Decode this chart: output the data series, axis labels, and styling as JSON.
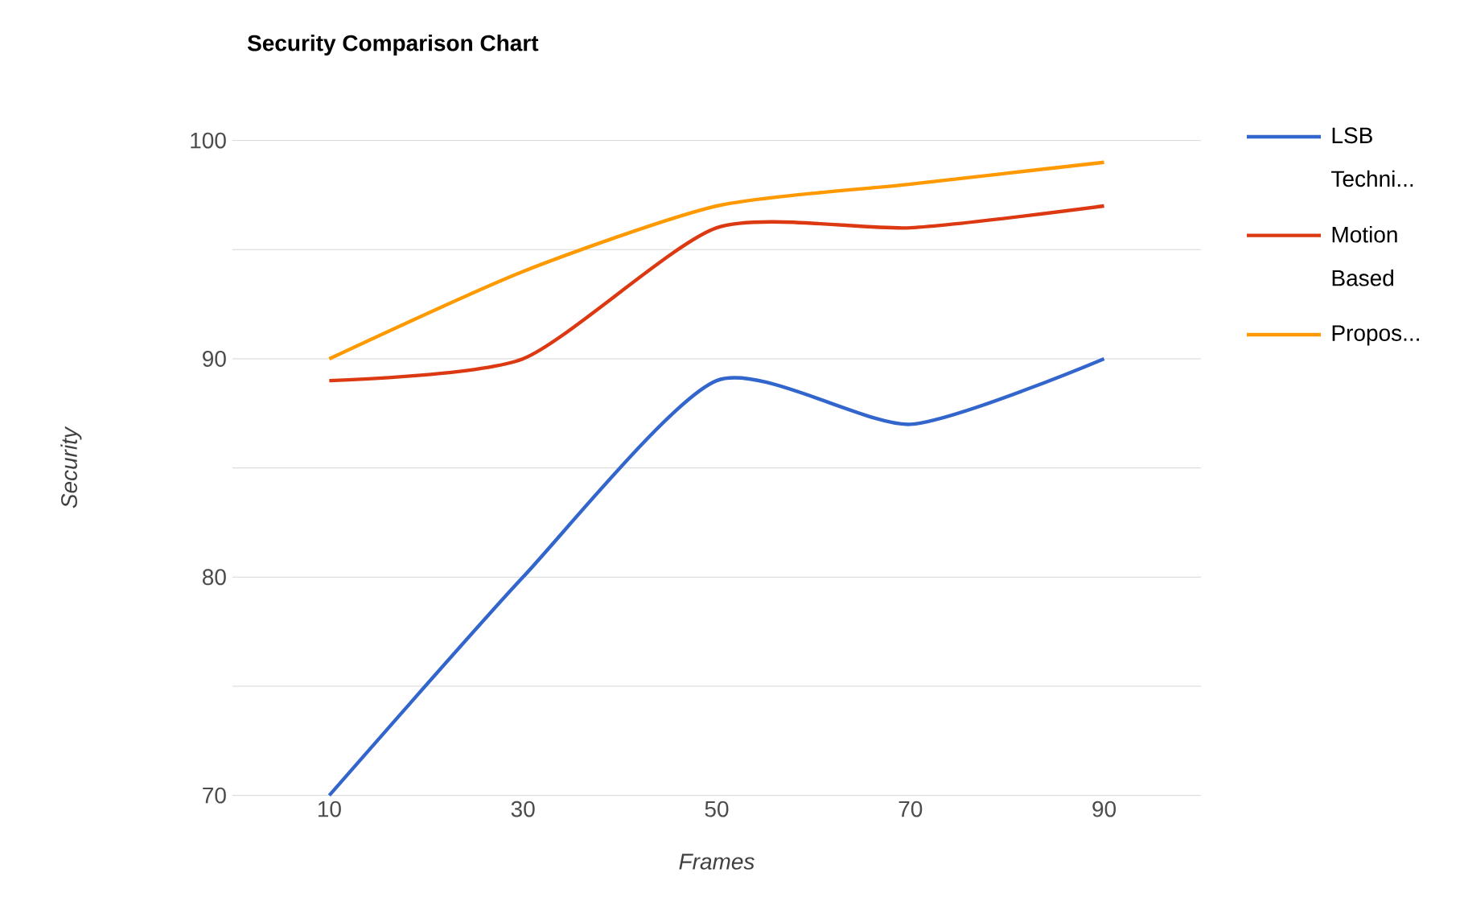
{
  "chart_data": {
    "type": "line",
    "title": "Security Comparison Chart",
    "xlabel": "Frames",
    "ylabel": "Security",
    "categories": [
      "10",
      "30",
      "50",
      "70",
      "90"
    ],
    "series": [
      {
        "name": "LSB Techni...",
        "color": "#3366cc",
        "values": [
          70,
          80,
          89,
          87,
          90
        ]
      },
      {
        "name": "Motion Based",
        "color": "#dc3912",
        "values": [
          89,
          90,
          96,
          96,
          97
        ]
      },
      {
        "name": "Propos...",
        "color": "#ff9900",
        "values": [
          90,
          94,
          97,
          98,
          99
        ]
      }
    ],
    "ylim": [
      70,
      100
    ],
    "yticks": [
      70,
      {
        "value": 75,
        "label": null
      },
      80,
      {
        "value": 85,
        "label": null
      },
      90,
      {
        "value": 95,
        "label": null
      },
      100
    ],
    "grid": "y",
    "legend": "right",
    "line_style": "solid",
    "marker": "none"
  }
}
